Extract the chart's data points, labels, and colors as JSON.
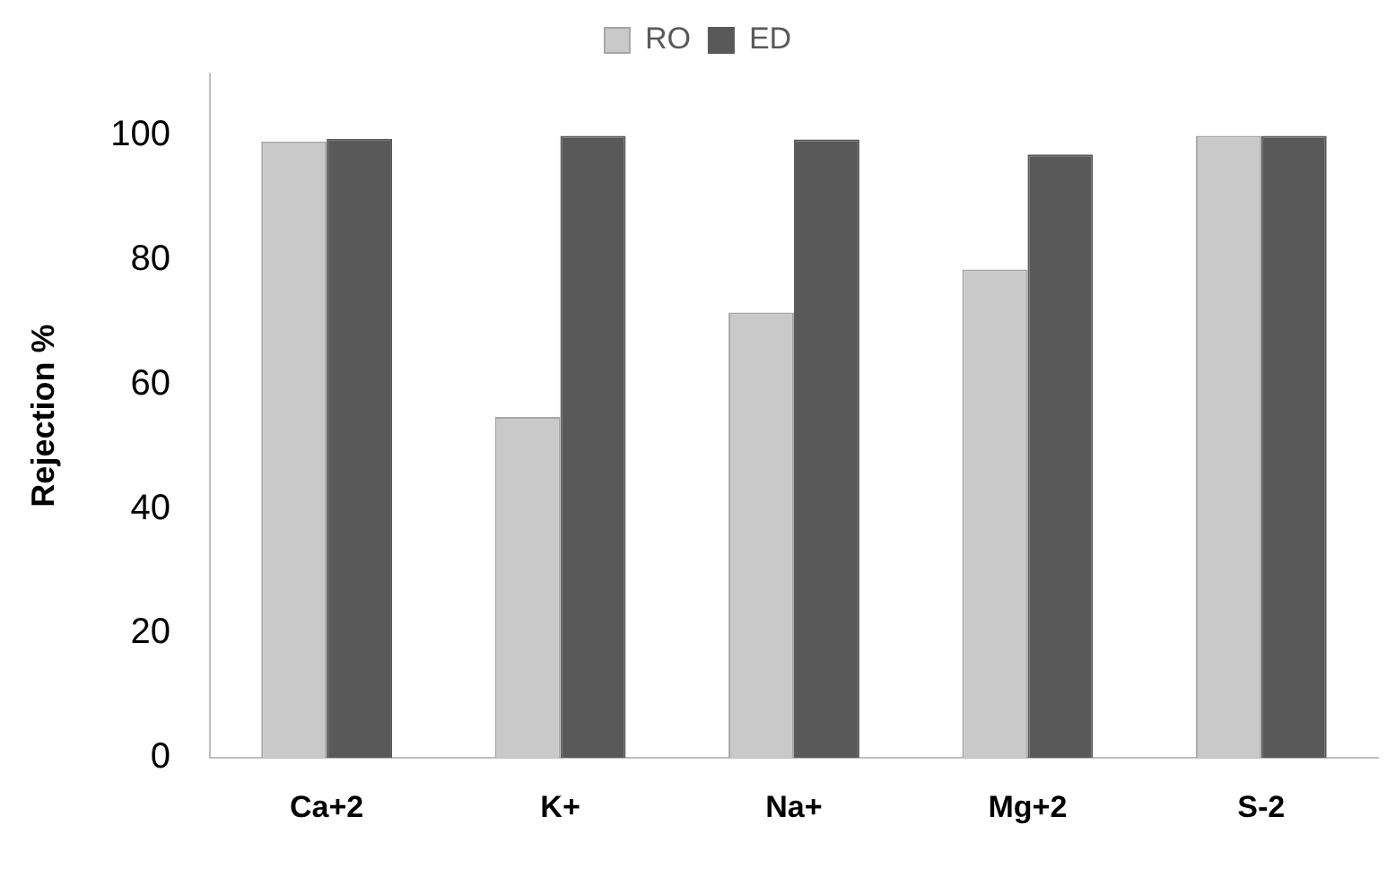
{
  "chart_data": {
    "type": "bar",
    "ylabel": "Rejection %",
    "categories": [
      "Ca+2",
      "K+",
      "Na+",
      "Mg+2",
      "S-2"
    ],
    "series": [
      {
        "name": "RO",
        "color": "#c9c9c9",
        "values": [
          99.1,
          54.8,
          71.6,
          78.5,
          100
        ]
      },
      {
        "name": "ED",
        "color": "#595959",
        "values": [
          99.5,
          100,
          99.4,
          97,
          100
        ]
      }
    ],
    "ylim": [
      0,
      110
    ],
    "yticks": [
      0,
      20,
      40,
      60,
      80,
      100
    ],
    "grid": false,
    "legend": "top"
  }
}
